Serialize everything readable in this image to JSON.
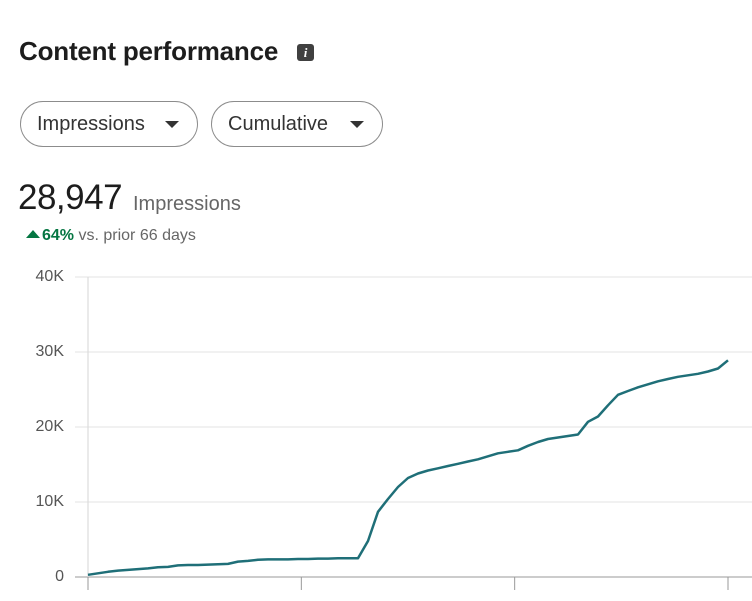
{
  "header": {
    "title": "Content performance"
  },
  "controls": [
    {
      "label": "Impressions"
    },
    {
      "label": "Cumulative"
    }
  ],
  "summary": {
    "value": "28,947",
    "metric": "Impressions",
    "change": "64%",
    "comparison": "vs. prior 66 days"
  },
  "chart_data": {
    "type": "line",
    "color": "#1f6f78",
    "grid": true,
    "values": [
      300,
      500,
      700,
      850,
      950,
      1050,
      1150,
      1300,
      1350,
      1550,
      1600,
      1600,
      1650,
      1700,
      1750,
      2050,
      2150,
      2300,
      2350,
      2350,
      2350,
      2400,
      2400,
      2450,
      2450,
      2500,
      2500,
      2500,
      4800,
      8700,
      10400,
      12000,
      13200,
      13800,
      14200,
      14500,
      14800,
      15100,
      15400,
      15700,
      16100,
      16500,
      16700,
      16900,
      17500,
      18000,
      18400,
      18600,
      18800,
      19000,
      20700,
      21400,
      22900,
      24300,
      24800,
      25300,
      25700,
      26100,
      26400,
      26700,
      26900,
      27100,
      27400,
      27800,
      28900
    ],
    "ylim": [
      0,
      40000
    ],
    "yticks": [
      0,
      {
        "value": 10000,
        "label": "10K"
      },
      {
        "value": 20000,
        "label": "20K"
      },
      {
        "value": 30000,
        "label": "30K"
      },
      {
        "value": 40000,
        "label": "40K"
      }
    ]
  }
}
